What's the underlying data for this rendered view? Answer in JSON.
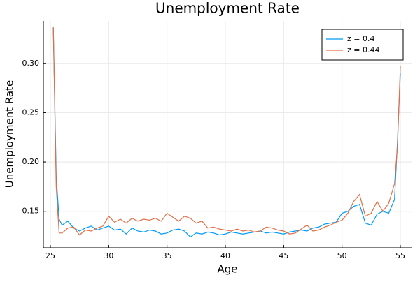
{
  "chart_data": {
    "type": "line",
    "title": "Unemployment Rate",
    "x_label": "Age",
    "y_label": "Unemployment Rate",
    "x": [
      25.25,
      25.5,
      25.75,
      26,
      26.5,
      27,
      27.5,
      28,
      28.5,
      29,
      29.5,
      30,
      30.5,
      31,
      31.5,
      32,
      32.5,
      33,
      33.5,
      34,
      34.5,
      35,
      35.5,
      36,
      36.5,
      37,
      37.5,
      38,
      38.5,
      39,
      39.5,
      40,
      40.5,
      41,
      41.5,
      42,
      42.5,
      43,
      43.5,
      44,
      44.5,
      45,
      45.5,
      46,
      46.5,
      47,
      47.5,
      48,
      48.5,
      49,
      49.5,
      50,
      50.5,
      51,
      51.5,
      52,
      52.5,
      53,
      53.5,
      54,
      54.5,
      54.75,
      55
    ],
    "series": [
      {
        "name": "z = 0.4",
        "color": "#009af9",
        "values": [
          0.336,
          0.185,
          0.142,
          0.136,
          0.14,
          0.133,
          0.13,
          0.133,
          0.135,
          0.131,
          0.133,
          0.135,
          0.131,
          0.132,
          0.127,
          0.133,
          0.13,
          0.129,
          0.131,
          0.13,
          0.127,
          0.128,
          0.131,
          0.132,
          0.13,
          0.124,
          0.128,
          0.127,
          0.129,
          0.128,
          0.126,
          0.127,
          0.129,
          0.128,
          0.127,
          0.128,
          0.129,
          0.13,
          0.128,
          0.129,
          0.128,
          0.127,
          0.129,
          0.13,
          0.131,
          0.13,
          0.133,
          0.134,
          0.137,
          0.138,
          0.139,
          0.148,
          0.15,
          0.155,
          0.157,
          0.138,
          0.136,
          0.147,
          0.15,
          0.148,
          0.162,
          0.22,
          0.29
        ]
      },
      {
        "name": "z = 0.44",
        "color": "#e26f46",
        "values": [
          0.337,
          0.175,
          0.128,
          0.128,
          0.133,
          0.134,
          0.126,
          0.131,
          0.13,
          0.133,
          0.135,
          0.145,
          0.139,
          0.142,
          0.138,
          0.143,
          0.14,
          0.142,
          0.141,
          0.143,
          0.14,
          0.148,
          0.144,
          0.14,
          0.145,
          0.143,
          0.138,
          0.14,
          0.133,
          0.134,
          0.132,
          0.131,
          0.13,
          0.132,
          0.13,
          0.131,
          0.129,
          0.13,
          0.134,
          0.133,
          0.131,
          0.13,
          0.127,
          0.128,
          0.132,
          0.136,
          0.13,
          0.131,
          0.134,
          0.136,
          0.139,
          0.141,
          0.148,
          0.16,
          0.167,
          0.145,
          0.148,
          0.16,
          0.15,
          0.158,
          0.178,
          0.215,
          0.297
        ]
      }
    ],
    "xlim": [
      24.4,
      55.96
    ],
    "ylim": [
      0.113,
      0.343
    ],
    "xticks": [
      25,
      30,
      35,
      40,
      45,
      50,
      55
    ],
    "yticks": [
      {
        "value": 0.15,
        "label": "0.15"
      },
      {
        "value": 0.2,
        "label": "0.20"
      },
      {
        "value": 0.25,
        "label": "0.25"
      },
      {
        "value": 0.3,
        "label": "0.30"
      }
    ],
    "grid": true,
    "legend": "top-right"
  }
}
